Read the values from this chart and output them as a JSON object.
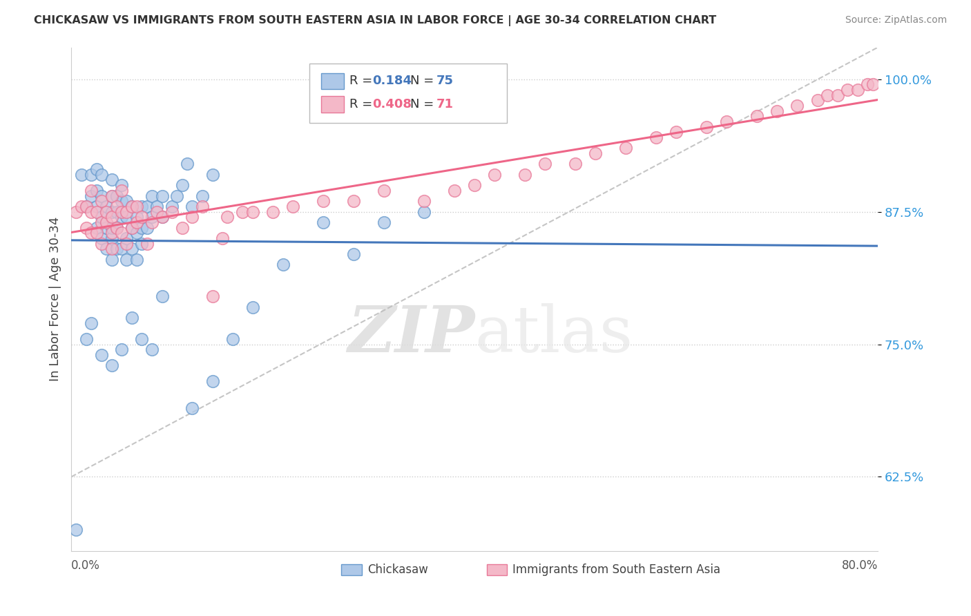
{
  "title": "CHICKASAW VS IMMIGRANTS FROM SOUTH EASTERN ASIA IN LABOR FORCE | AGE 30-34 CORRELATION CHART",
  "source": "Source: ZipAtlas.com",
  "xlabel_bottom_left": "0.0%",
  "xlabel_bottom_right": "80.0%",
  "ylabel": "In Labor Force | Age 30-34",
  "yticks": [
    0.625,
    0.75,
    0.875,
    1.0
  ],
  "ytick_labels": [
    "62.5%",
    "75.0%",
    "87.5%",
    "100.0%"
  ],
  "xmin": 0.0,
  "xmax": 0.8,
  "ymin": 0.555,
  "ymax": 1.03,
  "blue_R": 0.184,
  "blue_N": 75,
  "pink_R": 0.408,
  "pink_N": 71,
  "blue_color": "#aec8e8",
  "pink_color": "#f4b8c8",
  "blue_edge_color": "#6699cc",
  "pink_edge_color": "#e87898",
  "blue_line_color": "#4477bb",
  "pink_line_color": "#ee6688",
  "watermark_zip": "ZIP",
  "watermark_atlas": "atlas",
  "legend_label_blue": "Chickasaw",
  "legend_label_pink": "Immigrants from South Eastern Asia",
  "blue_scatter_x": [
    0.005,
    0.01,
    0.015,
    0.02,
    0.02,
    0.025,
    0.025,
    0.025,
    0.025,
    0.03,
    0.03,
    0.03,
    0.03,
    0.035,
    0.035,
    0.035,
    0.04,
    0.04,
    0.04,
    0.04,
    0.04,
    0.04,
    0.045,
    0.045,
    0.045,
    0.045,
    0.05,
    0.05,
    0.05,
    0.05,
    0.055,
    0.055,
    0.055,
    0.055,
    0.06,
    0.06,
    0.06,
    0.065,
    0.065,
    0.065,
    0.07,
    0.07,
    0.07,
    0.075,
    0.075,
    0.08,
    0.08,
    0.085,
    0.09,
    0.09,
    0.1,
    0.105,
    0.11,
    0.115,
    0.12,
    0.13,
    0.14,
    0.015,
    0.02,
    0.03,
    0.04,
    0.05,
    0.06,
    0.07,
    0.08,
    0.09,
    0.12,
    0.14,
    0.16,
    0.18,
    0.21,
    0.25,
    0.28,
    0.31,
    0.35
  ],
  "blue_scatter_y": [
    0.575,
    0.91,
    0.88,
    0.89,
    0.91,
    0.86,
    0.88,
    0.895,
    0.915,
    0.85,
    0.87,
    0.89,
    0.91,
    0.84,
    0.86,
    0.88,
    0.83,
    0.85,
    0.86,
    0.875,
    0.89,
    0.905,
    0.84,
    0.86,
    0.875,
    0.89,
    0.84,
    0.87,
    0.885,
    0.9,
    0.83,
    0.85,
    0.87,
    0.885,
    0.84,
    0.86,
    0.88,
    0.83,
    0.855,
    0.87,
    0.845,
    0.86,
    0.88,
    0.86,
    0.88,
    0.87,
    0.89,
    0.88,
    0.87,
    0.89,
    0.88,
    0.89,
    0.9,
    0.92,
    0.88,
    0.89,
    0.91,
    0.755,
    0.77,
    0.74,
    0.73,
    0.745,
    0.775,
    0.755,
    0.745,
    0.795,
    0.69,
    0.715,
    0.755,
    0.785,
    0.825,
    0.865,
    0.835,
    0.865,
    0.875
  ],
  "pink_scatter_x": [
    0.005,
    0.01,
    0.015,
    0.015,
    0.02,
    0.02,
    0.02,
    0.025,
    0.025,
    0.03,
    0.03,
    0.03,
    0.035,
    0.035,
    0.04,
    0.04,
    0.04,
    0.04,
    0.045,
    0.045,
    0.05,
    0.05,
    0.05,
    0.055,
    0.055,
    0.06,
    0.06,
    0.065,
    0.065,
    0.07,
    0.075,
    0.08,
    0.085,
    0.09,
    0.1,
    0.11,
    0.12,
    0.13,
    0.14,
    0.15,
    0.155,
    0.17,
    0.18,
    0.2,
    0.22,
    0.25,
    0.28,
    0.31,
    0.35,
    0.38,
    0.4,
    0.42,
    0.45,
    0.47,
    0.5,
    0.52,
    0.55,
    0.58,
    0.6,
    0.63,
    0.65,
    0.68,
    0.7,
    0.72,
    0.74,
    0.75,
    0.76,
    0.77,
    0.78,
    0.79,
    0.795
  ],
  "pink_scatter_y": [
    0.875,
    0.88,
    0.86,
    0.88,
    0.855,
    0.875,
    0.895,
    0.855,
    0.875,
    0.845,
    0.865,
    0.885,
    0.865,
    0.875,
    0.84,
    0.855,
    0.87,
    0.89,
    0.86,
    0.88,
    0.855,
    0.875,
    0.895,
    0.845,
    0.875,
    0.86,
    0.88,
    0.865,
    0.88,
    0.87,
    0.845,
    0.865,
    0.875,
    0.87,
    0.875,
    0.86,
    0.87,
    0.88,
    0.795,
    0.85,
    0.87,
    0.875,
    0.875,
    0.875,
    0.88,
    0.885,
    0.885,
    0.895,
    0.885,
    0.895,
    0.9,
    0.91,
    0.91,
    0.92,
    0.92,
    0.93,
    0.935,
    0.945,
    0.95,
    0.955,
    0.96,
    0.965,
    0.97,
    0.975,
    0.98,
    0.985,
    0.985,
    0.99,
    0.99,
    0.995,
    0.995
  ]
}
